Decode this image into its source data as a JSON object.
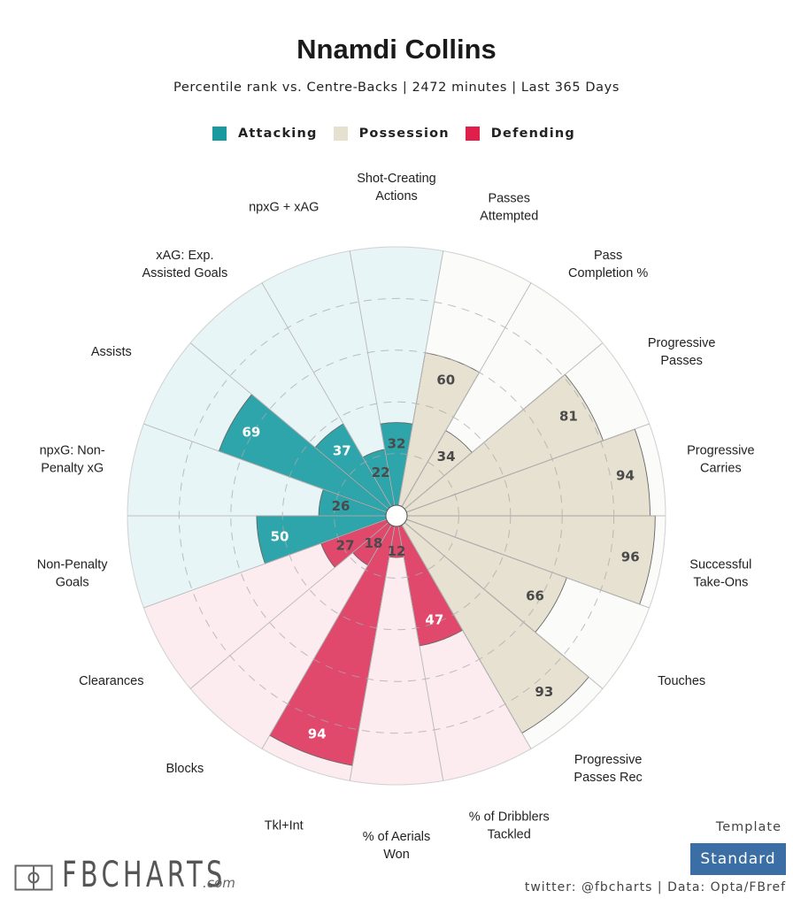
{
  "header": {
    "title": "Nnamdi Collins",
    "subtitle": "Percentile rank vs. Centre-Backs | 2472 minutes | Last 365 Days"
  },
  "legend": [
    {
      "label": "Attacking",
      "color": "#1a9a9e"
    },
    {
      "label": "Possession",
      "color": "#e6e0cf"
    },
    {
      "label": "Defending",
      "color": "#e0204a"
    }
  ],
  "chart_data": {
    "type": "polar-bar",
    "title": "Nnamdi Collins",
    "subtitle": "Percentile rank vs. Centre-Backs | 2472 minutes | Last 365 Days",
    "value_range": [
      0,
      100
    ],
    "gridlines": [
      20,
      40,
      60,
      80
    ],
    "legend_position": "top-center",
    "groups": {
      "Attacking": {
        "bar_color": "#2ea5ab",
        "bg_color": "#e8f5f6",
        "text_color_inside": "#ffffff"
      },
      "Possession": {
        "bar_color": "#e6e1d1",
        "bg_color": "#fbfbf9",
        "text_color_inside": "#444444"
      },
      "Defending": {
        "bar_color": "#e0486c",
        "bg_color": "#fcebef",
        "text_color_inside": "#ffffff"
      }
    },
    "categories": [
      {
        "label": "Shot-Creating Actions",
        "lines": [
          "Shot-Creating",
          "Actions"
        ],
        "group": "Attacking",
        "value": 32
      },
      {
        "label": "Passes Attempted",
        "lines": [
          "Passes",
          "Attempted"
        ],
        "group": "Possession",
        "value": 60
      },
      {
        "label": "Pass Completion %",
        "lines": [
          "Pass",
          "Completion %"
        ],
        "group": "Possession",
        "value": 34
      },
      {
        "label": "Progressive Passes",
        "lines": [
          "Progressive",
          "Passes"
        ],
        "group": "Possession",
        "value": 81
      },
      {
        "label": "Progressive Carries",
        "lines": [
          "Progressive",
          "Carries"
        ],
        "group": "Possession",
        "value": 94
      },
      {
        "label": "Successful Take-Ons",
        "lines": [
          "Successful",
          "Take-Ons"
        ],
        "group": "Possession",
        "value": 96
      },
      {
        "label": "Touches",
        "lines": [
          "Touches"
        ],
        "group": "Possession",
        "value": 66
      },
      {
        "label": "Progressive Passes Rec",
        "lines": [
          "Progressive",
          "Passes Rec"
        ],
        "group": "Possession",
        "value": 93
      },
      {
        "label": "% of Dribblers Tackled",
        "lines": [
          "% of Dribblers",
          "Tackled"
        ],
        "group": "Defending",
        "value": 47
      },
      {
        "label": "% of Aerials Won",
        "lines": [
          "% of Aerials",
          "Won"
        ],
        "group": "Defending",
        "value": 12
      },
      {
        "label": "Tkl+Int",
        "lines": [
          "Tkl+Int"
        ],
        "group": "Defending",
        "value": 94
      },
      {
        "label": "Blocks",
        "lines": [
          "Blocks"
        ],
        "group": "Defending",
        "value": 18
      },
      {
        "label": "Clearances",
        "lines": [
          "Clearances"
        ],
        "group": "Defending",
        "value": 27
      },
      {
        "label": "Non-Penalty Goals",
        "lines": [
          "Non-Penalty",
          "Goals"
        ],
        "group": "Attacking",
        "value": 50
      },
      {
        "label": "npxG: Non-Penalty xG",
        "lines": [
          "npxG: Non-",
          "Penalty xG"
        ],
        "group": "Attacking",
        "value": 26
      },
      {
        "label": "Assists",
        "lines": [
          "Assists"
        ],
        "group": "Attacking",
        "value": 69
      },
      {
        "label": "xAG: Exp. Assisted Goals",
        "lines": [
          "xAG: Exp.",
          "Assisted Goals"
        ],
        "group": "Attacking",
        "value": 37
      },
      {
        "label": "npxG + xAG",
        "lines": [
          "npxG + xAG"
        ],
        "group": "Attacking",
        "value": 22
      }
    ]
  },
  "footer": {
    "logo": "FBCHARTS",
    "logo_suffix": ".com",
    "template_label": "Template",
    "template_value": "Standard",
    "credits": "twitter: @fbcharts | Data: Opta/FBref"
  }
}
